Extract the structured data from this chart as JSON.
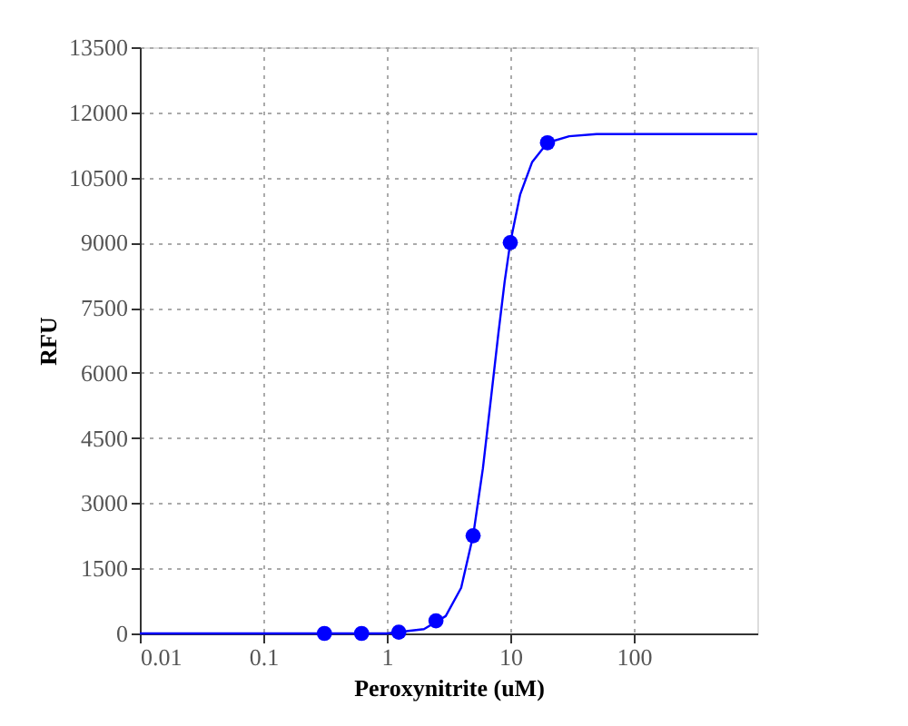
{
  "chart_data": {
    "type": "scatter",
    "xlabel": "Peroxynitrite (uM)",
    "ylabel": "RFU",
    "log": "x",
    "grid": true,
    "xlim": [
      0.01,
      1000
    ],
    "xticks": [
      0.01,
      0.1,
      1,
      10,
      100
    ],
    "ylim": [
      0,
      13500
    ],
    "yticks": [
      0,
      1500,
      3000,
      4500,
      6000,
      7500,
      9000,
      10500,
      12000,
      13500
    ],
    "series": [
      {
        "type": "line",
        "color": "#0000ff",
        "marker": "none",
        "x": [
          0.01,
          1,
          2,
          3,
          4,
          5,
          6,
          7,
          8,
          9,
          10,
          12,
          15,
          20,
          30,
          50,
          100,
          1000
        ],
        "values": [
          0,
          0,
          100,
          400,
          1050,
          2250,
          3800,
          5450,
          6900,
          8100,
          9000,
          10100,
          10850,
          11300,
          11450,
          11500,
          11500,
          11500
        ]
      },
      {
        "type": "scatter",
        "color": "#0000ff",
        "marker": "circle",
        "x": [
          0.3125,
          0.625,
          1.25,
          2.5,
          5,
          10,
          20
        ],
        "values": [
          0,
          0,
          30,
          290,
          2250,
          9000,
          11300
        ]
      }
    ]
  }
}
